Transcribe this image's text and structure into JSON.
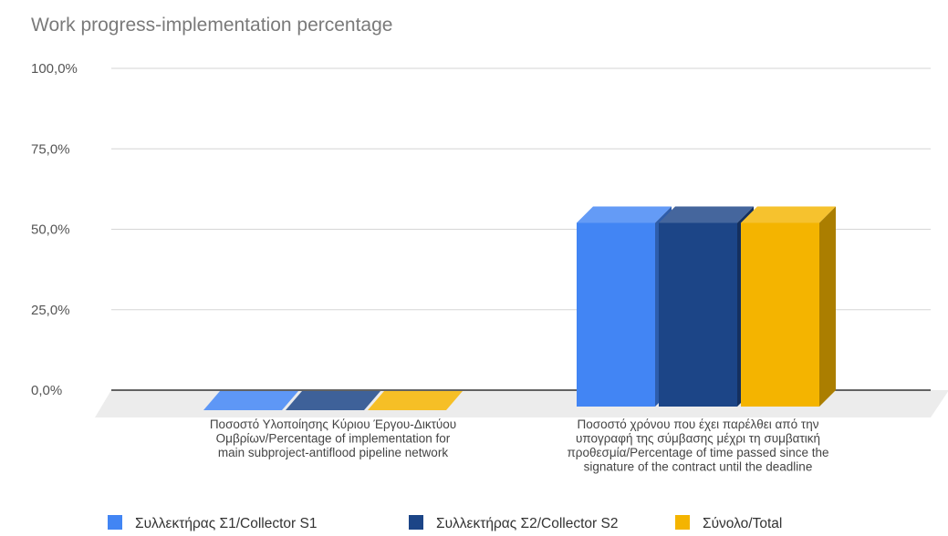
{
  "chart_data": {
    "type": "bar",
    "title": "Work progress-implementation percentage",
    "categories": [
      [
        "Ποσοστό Υλοποίησης Κύριου Έργου-Δικτύου",
        "Ομβρίων/Percentage of implementation for",
        "main subproject-antiflood pipeline network"
      ],
      [
        "Ποσοστό χρόνου που έχει παρέλθει από την",
        "υπογραφή της σύμβασης μέχρι τη συμβατική",
        "προθεσμία/Percentage of time passed since the",
        "signature of the contract until the deadline"
      ]
    ],
    "series": [
      {
        "name": "Συλλεκτήρας Σ1/Collector S1",
        "values": [
          0,
          52
        ],
        "color": "#4285f4"
      },
      {
        "name": "Συλλεκτήρας Σ2/Collector S2",
        "values": [
          0,
          52
        ],
        "color": "#1c4587"
      },
      {
        "name": "Σύνολο/Total",
        "values": [
          0,
          52
        ],
        "color": "#f4b400"
      }
    ],
    "y_ticks": [
      "0,0%",
      "25,0%",
      "50,0%",
      "75,0%",
      "100,0%"
    ],
    "ylim": [
      0,
      100
    ],
    "grid": true,
    "legend": "bottom",
    "style": "3d"
  }
}
